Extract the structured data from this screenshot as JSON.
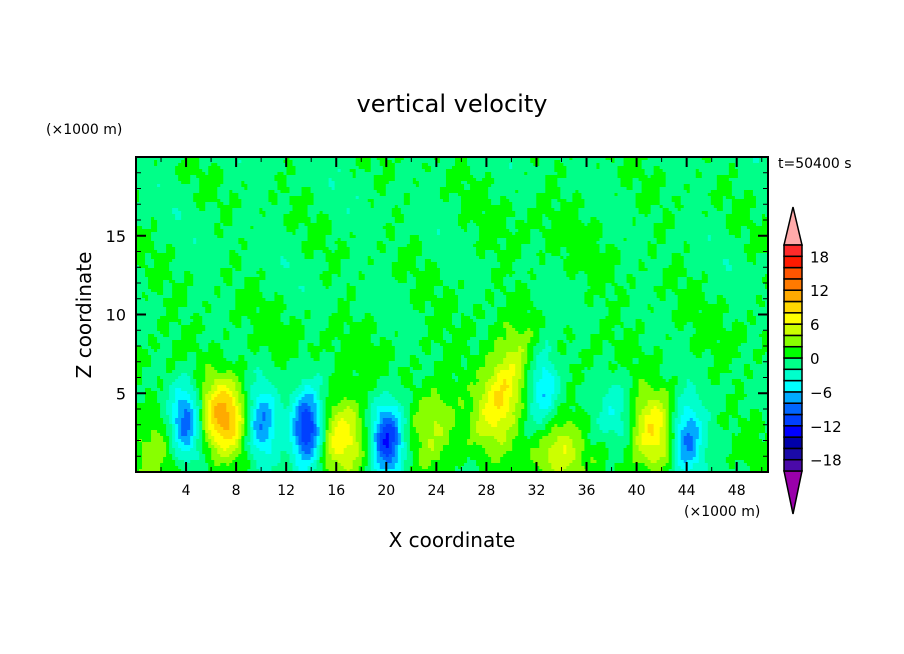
{
  "chart_data": {
    "type": "heatmap",
    "subtype": "filled-contour",
    "title": "vertical velocity",
    "xlabel": "X coordinate",
    "ylabel": "Z coordinate",
    "x_unit": "(×1000 m)",
    "y_unit": "(×1000 m)",
    "time_label": "t=50400 s",
    "xlim": [
      0,
      50.5
    ],
    "ylim": [
      0,
      20
    ],
    "x_ticks": [
      4,
      8,
      12,
      16,
      20,
      24,
      28,
      32,
      36,
      40,
      44,
      48
    ],
    "y_ticks": [
      5,
      10,
      15
    ],
    "colorbar": {
      "levels": [
        -20,
        -18,
        -16,
        -14,
        -12,
        -10,
        -8,
        -6,
        -4,
        -2,
        0,
        2,
        4,
        6,
        8,
        10,
        12,
        14,
        16,
        18,
        20
      ],
      "tick_labels": [
        "18",
        "12",
        "6",
        "0",
        "−6",
        "−12",
        "−18"
      ],
      "tick_values": [
        18,
        12,
        6,
        0,
        -6,
        -12,
        -18
      ],
      "colors_low_to_high": [
        "#4a0aa8",
        "#1a0aa8",
        "#0000aa",
        "#0000ff",
        "#0040ff",
        "#0066ff",
        "#00aaff",
        "#00ffff",
        "#00ffcc",
        "#00ff88",
        "#00ff00",
        "#88ff00",
        "#ccff00",
        "#ffff00",
        "#ffd700",
        "#ffaa00",
        "#ff7a00",
        "#ff5500",
        "#ff1a00",
        "#ff2a2a"
      ],
      "over_color": "#ffaaaa",
      "under_color": "#9900aa",
      "extend": "both"
    },
    "features": [
      {
        "kind": "updraft",
        "x": 7.0,
        "z": 3.5,
        "w": 11
      },
      {
        "kind": "updraft",
        "x": 16.6,
        "z": 2.5,
        "w": 8
      },
      {
        "kind": "updraft",
        "x": 23.8,
        "z": 2.8,
        "w": 5
      },
      {
        "kind": "updraft",
        "x": 29.3,
        "z": 5.0,
        "w": 9
      },
      {
        "kind": "updraft",
        "x": 33.6,
        "z": 1.4,
        "w": 6
      },
      {
        "kind": "updraft",
        "x": 41.3,
        "z": 2.5,
        "w": 8
      },
      {
        "kind": "updraft",
        "x": 1.8,
        "z": 2.0,
        "w": 3
      },
      {
        "kind": "downdraft",
        "x": 4.0,
        "z": 3.3,
        "w": -9
      },
      {
        "kind": "downdraft",
        "x": 10.0,
        "z": 3.0,
        "w": -8
      },
      {
        "kind": "downdraft",
        "x": 13.7,
        "z": 2.7,
        "w": -13
      },
      {
        "kind": "downdraft",
        "x": 20.1,
        "z": 2.0,
        "w": -12
      },
      {
        "kind": "downdraft",
        "x": 32.6,
        "z": 5.5,
        "w": -6
      },
      {
        "kind": "downdraft",
        "x": 44.0,
        "z": 2.0,
        "w": -9
      },
      {
        "kind": "downdraft",
        "x": 38.5,
        "z": 4.0,
        "w": -3
      }
    ]
  }
}
